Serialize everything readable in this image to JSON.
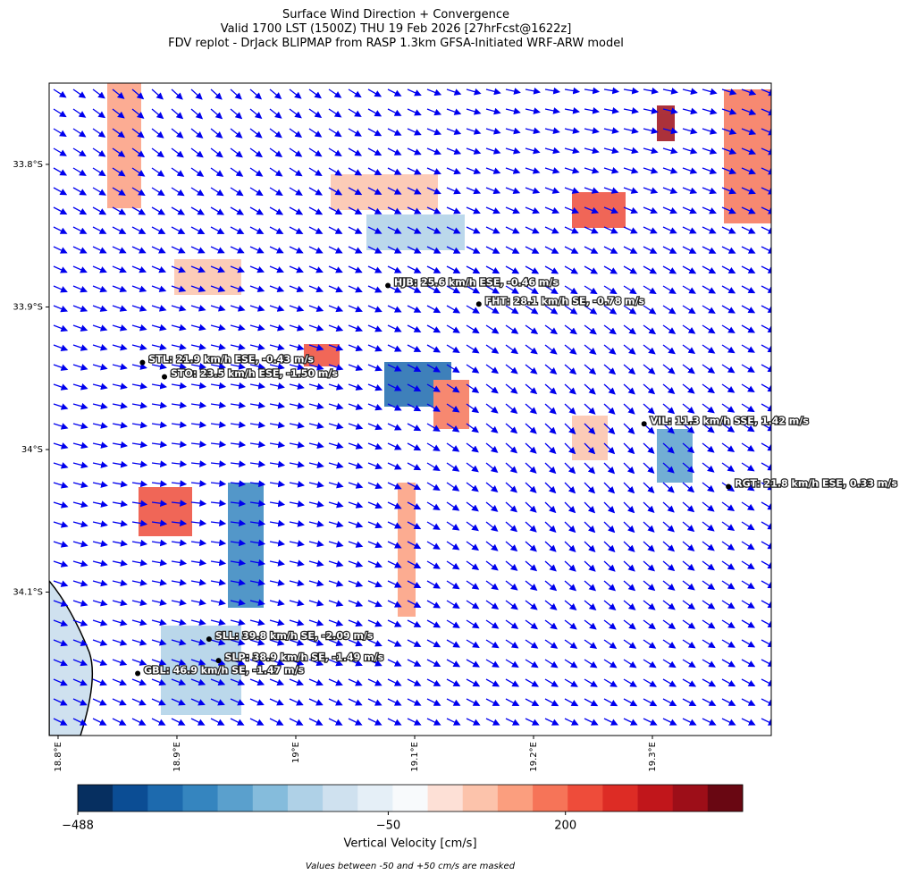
{
  "title_lines": [
    "Surface Wind Direction + Convergence",
    "Valid 1700 LST (1500Z) THU 19 Feb 2026 [27hrFcst@1622z]",
    "FDV replot - DrJack BLIPMAP from RASP 1.3km GFSA-Initiated WRF-ARW model"
  ],
  "map": {
    "type": "map",
    "xlim": [
      18.7925,
      19.4
    ],
    "ylim": [
      -34.2006,
      -33.743
    ],
    "xticks": [
      {
        "value": 18.8,
        "label": "18.8°E"
      },
      {
        "value": 18.9,
        "label": "18.9°E"
      },
      {
        "value": 19.0,
        "label": "19°E"
      },
      {
        "value": 19.1,
        "label": "19.1°E"
      },
      {
        "value": 19.2,
        "label": "19.2°E"
      },
      {
        "value": 19.3,
        "label": "19.3°E"
      }
    ],
    "yticks": [
      {
        "value": -33.8,
        "label": "33.8°S"
      },
      {
        "value": -33.9,
        "label": "33.9°S"
      },
      {
        "value": -34.0,
        "label": "34°S"
      },
      {
        "value": -34.1,
        "label": "34.1°S"
      }
    ],
    "stations": [
      {
        "label": "STL: 21.9 km/h ESE, -0.43 m/s",
        "lon": 18.871,
        "lat": -33.939
      },
      {
        "label": "STO: 23.5 km/h ESE, -1.50 m/s",
        "lon": 18.8895,
        "lat": -33.949
      },
      {
        "label": "HJB: 25.6 km/h ESE, -0.46 m/s",
        "lon": 19.0775,
        "lat": -33.885
      },
      {
        "label": "FHT: 28.1 km/h SE, -0.78 m/s",
        "lon": 19.154,
        "lat": -33.898
      },
      {
        "label": "VIL: 11.3 km/h SSE, 1.42 m/s",
        "lon": 19.293,
        "lat": -33.982
      },
      {
        "label": "RGT: 21.8 km/h ESE, 0.33 m/s",
        "lon": 19.364,
        "lat": -34.026
      },
      {
        "label": "SLL: 39.8 km/h SE, -2.09 m/s",
        "lon": 18.927,
        "lat": -34.133
      },
      {
        "label": "SLP: 38.9 km/h SE, -1.49 m/s",
        "lon": 18.935,
        "lat": -34.148
      },
      {
        "label": "GBL: 46.9 km/h SE, -1.47 m/s",
        "lon": 18.867,
        "lat": -34.157
      }
    ]
  },
  "colorbar": {
    "label": "Vertical Velocity [cm/s]",
    "note": "Values between -50 and +50 cm/s are masked",
    "lim": [
      -488,
      450
    ],
    "colors": [
      "#062f60",
      "#0b4d94",
      "#1d6aae",
      "#3585bf",
      "#5aa0cd",
      "#85bcdc",
      "#afd1e7",
      "#cfe1ef",
      "#e5eff7",
      "#f8fafc",
      "#fde0d6",
      "#fcc3ab",
      "#fb9e7e",
      "#f67458",
      "#ee4c3a",
      "#dd2c25",
      "#c1161b",
      "#9d0e18",
      "#690712"
    ],
    "ticks": [
      {
        "value": -488,
        "label": "−488"
      },
      {
        "value": -50,
        "label": "−50"
      },
      200
    ]
  }
}
